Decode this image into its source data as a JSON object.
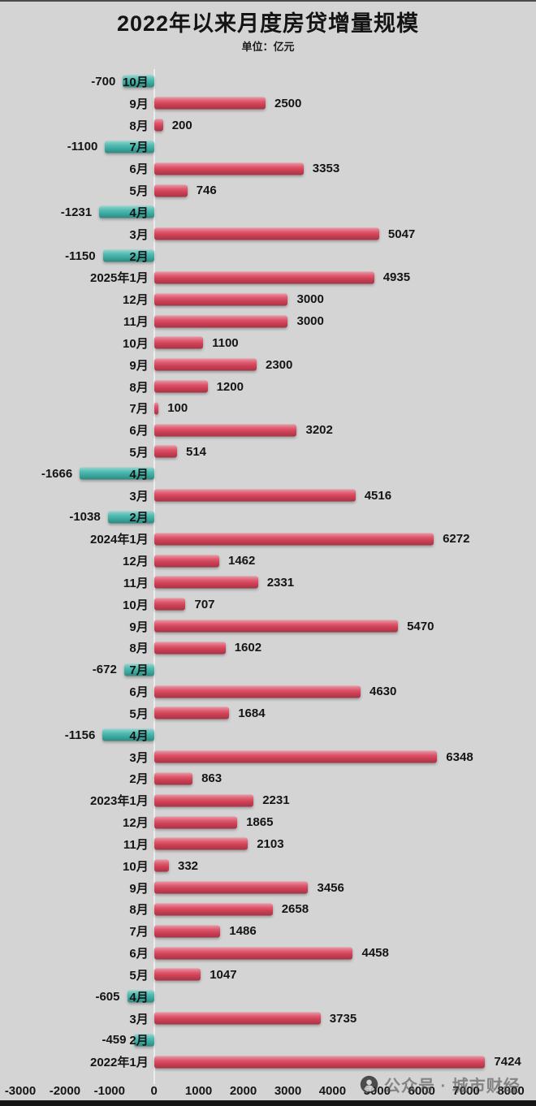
{
  "page": {
    "title": "2022年以来月度房贷增量规模",
    "subtitle": "单位：亿元"
  },
  "watermark": {
    "logo": "wechat-official-account-icon",
    "text": "公众号 · 城市财经"
  },
  "colors": {
    "background": "#d4d4d4",
    "positive_bar": "#d8435a",
    "negative_bar": "#3fb3a8",
    "text": "#1a1a1a",
    "watermark_text": "#505050"
  },
  "chart_data": {
    "type": "bar",
    "orientation": "horizontal",
    "title": "2022年以来月度房贷增量规模",
    "subtitle": "单位：亿元",
    "unit": "亿元",
    "xlabel": "",
    "ylabel": "",
    "grid": false,
    "legend": null,
    "xlim": [
      -3000,
      8000
    ],
    "xticks": [
      -3000,
      -2000,
      -1000,
      0,
      1000,
      2000,
      3000,
      4000,
      5000,
      6000,
      7000,
      8000
    ],
    "categories": [
      "10月",
      "9月",
      "8月",
      "7月",
      "6月",
      "5月",
      "4月",
      "3月",
      "2月",
      "2025年1月",
      "12月",
      "11月",
      "10月",
      "9月",
      "8月",
      "7月",
      "6月",
      "5月",
      "4月",
      "3月",
      "2月",
      "2024年1月",
      "12月",
      "11月",
      "10月",
      "9月",
      "8月",
      "7月",
      "6月",
      "5月",
      "4月",
      "3月",
      "2月",
      "2023年1月",
      "12月",
      "11月",
      "10月",
      "9月",
      "8月",
      "7月",
      "6月",
      "5月",
      "4月",
      "3月",
      "2月",
      "2022年1月"
    ],
    "values": [
      -700,
      2500,
      200,
      -1100,
      3353,
      746,
      -1231,
      5047,
      -1150,
      4935,
      3000,
      3000,
      1100,
      2300,
      1200,
      100,
      3202,
      514,
      -1666,
      4516,
      -1038,
      6272,
      1462,
      2331,
      707,
      5470,
      1602,
      -672,
      4630,
      1684,
      -1156,
      6348,
      863,
      2231,
      1865,
      2103,
      332,
      3456,
      2658,
      1486,
      4458,
      1047,
      -605,
      3735,
      -459,
      7424
    ]
  }
}
